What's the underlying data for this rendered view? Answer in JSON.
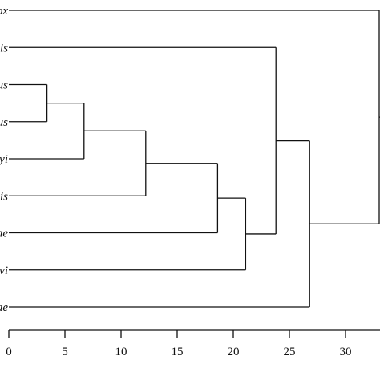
{
  "figure": {
    "line_color": "#111111",
    "background": "#ffffff"
  },
  "chart_data": {
    "type": "dendrogram",
    "orientation": "horizontal, leaves on left, root on right",
    "leaves": [
      {
        "id": "L0",
        "label": "ox"
      },
      {
        "id": "L1",
        "label": "vis"
      },
      {
        "id": "L2",
        "label": "us"
      },
      {
        "id": "L3",
        "label": "us"
      },
      {
        "id": "L4",
        "label": "yi"
      },
      {
        "id": "L5",
        "label": "vis"
      },
      {
        "id": "L6",
        "label": "ae"
      },
      {
        "id": "L7",
        "label": "vi"
      },
      {
        "id": "L8",
        "label": "ae"
      }
    ],
    "merges": [
      {
        "id": "N1",
        "children": [
          "L2",
          "L3"
        ],
        "height": 3.4
      },
      {
        "id": "N2",
        "children": [
          "N1",
          "L4"
        ],
        "height": 6.7
      },
      {
        "id": "N3",
        "children": [
          "N2",
          "L5"
        ],
        "height": 12.2
      },
      {
        "id": "N4",
        "children": [
          "N3",
          "L6"
        ],
        "height": 18.6
      },
      {
        "id": "N5",
        "children": [
          "N4",
          "L7"
        ],
        "height": 21.1
      },
      {
        "id": "N6",
        "children": [
          "L1",
          "N5"
        ],
        "height": 23.8
      },
      {
        "id": "N7",
        "children": [
          "N6",
          "L8"
        ],
        "height": 26.8
      },
      {
        "id": "N8",
        "children": [
          "L0",
          "N7"
        ],
        "height": 33.0
      }
    ],
    "x_axis": {
      "ticks": [
        0,
        5,
        10,
        15,
        20,
        25,
        30
      ],
      "tick_labels": [
        "0",
        "5",
        "10",
        "15",
        "20",
        "25",
        "30"
      ],
      "range": [
        0,
        33
      ]
    },
    "grid": false
  }
}
